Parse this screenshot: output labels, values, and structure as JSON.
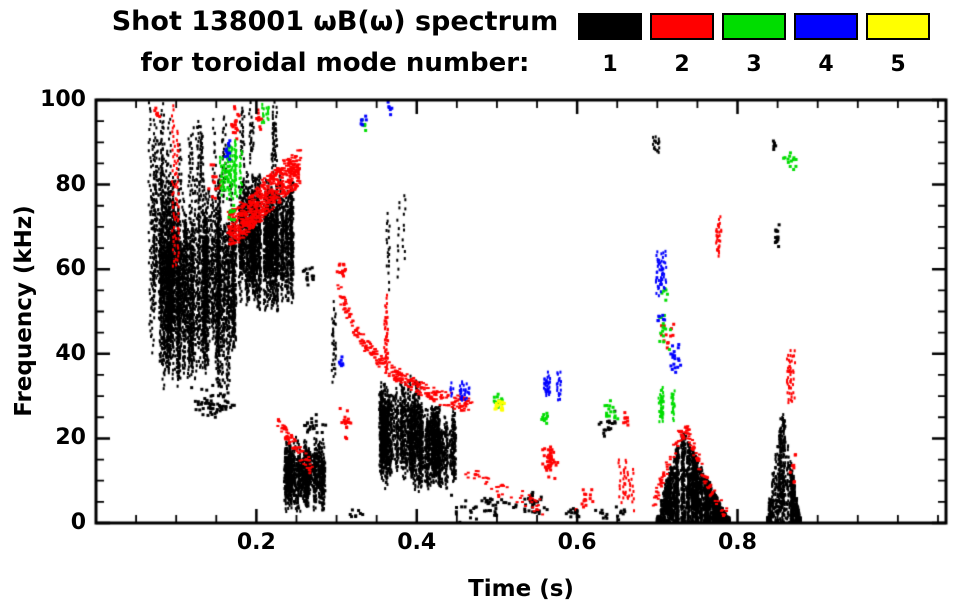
{
  "title": {
    "line1": "Shot 138001 ωB(ω) spectrum",
    "line2": "for toroidal mode number:"
  },
  "legend": {
    "items": [
      {
        "mode": "1",
        "color": "#000000"
      },
      {
        "mode": "2",
        "color": "#ff0000"
      },
      {
        "mode": "3",
        "color": "#00dd00"
      },
      {
        "mode": "4",
        "color": "#0000ff"
      },
      {
        "mode": "5",
        "color": "#ffff00"
      }
    ]
  },
  "axes": {
    "x": {
      "label": "Time (s)",
      "min": 0,
      "max": 1.06,
      "major_ticks": [
        0.2,
        0.4,
        0.6,
        0.8
      ],
      "tick_labels": [
        "0.2",
        "0.4",
        "0.6",
        "0.8"
      ],
      "minor_step": 0.05
    },
    "y": {
      "label": "Frequency (kHz)",
      "min": 0,
      "max": 100,
      "major_ticks": [
        0,
        20,
        40,
        60,
        80,
        100
      ],
      "tick_labels": [
        "0",
        "20",
        "40",
        "60",
        "80",
        "100"
      ],
      "minor_step": 5
    }
  },
  "chart_data": {
    "type": "scatter",
    "title": "Shot 138001 ωB(ω) spectrum for toroidal mode number 1-5",
    "xlabel": "Time (s)",
    "ylabel": "Frequency (kHz)",
    "xlim": [
      0,
      1.06
    ],
    "ylim": [
      0,
      100
    ],
    "grid": false,
    "legend_position": "top-right",
    "series": [
      {
        "name": "n=1",
        "color": "#000000",
        "clusters": [
          {
            "style": "streaks",
            "t": [
              0.065,
              0.1
            ],
            "f": [
              35,
              100
            ],
            "strands": 16,
            "per": 40
          },
          {
            "style": "streaks",
            "t": [
              0.08,
              0.175
            ],
            "f": [
              32,
              82
            ],
            "strands": 80,
            "per": 50
          },
          {
            "style": "streaks",
            "t": [
              0.1,
              0.165
            ],
            "f": [
              75,
              96
            ],
            "strands": 10,
            "per": 15
          },
          {
            "style": "streaks",
            "t": [
              0.175,
              0.245
            ],
            "f": [
              50,
              83
            ],
            "strands": 55,
            "per": 45
          },
          {
            "style": "streaks",
            "t": [
              0.18,
              0.225
            ],
            "f": [
              82,
              100
            ],
            "strands": 8,
            "per": 14
          },
          {
            "style": "blob",
            "t": [
              0.115,
              0.18
            ],
            "f": [
              23,
              33
            ],
            "n": 60
          },
          {
            "style": "streaks",
            "t": [
              0.235,
              0.285
            ],
            "f": [
              3,
              20
            ],
            "strands": 38,
            "per": 32
          },
          {
            "style": "blob",
            "t": [
              0.25,
              0.29
            ],
            "f": [
              20,
              26
            ],
            "n": 20
          },
          {
            "style": "blob",
            "t": [
              0.255,
              0.275
            ],
            "f": [
              55,
              62
            ],
            "n": 14
          },
          {
            "style": "streaks",
            "t": [
              0.29,
              0.305
            ],
            "f": [
              30,
              52
            ],
            "strands": 3,
            "per": 12
          },
          {
            "style": "streaks",
            "t": [
              0.355,
              0.385
            ],
            "f": [
              55,
              78
            ],
            "strands": 4,
            "per": 10
          },
          {
            "style": "streaks",
            "t": [
              0.35,
              0.405
            ],
            "f": [
              8,
              35
            ],
            "strands": 38,
            "per": 40
          },
          {
            "style": "streaks",
            "t": [
              0.405,
              0.45
            ],
            "f": [
              8,
              28
            ],
            "strands": 30,
            "per": 36
          },
          {
            "style": "blob",
            "t": [
              0.44,
              0.53
            ],
            "f": [
              0,
              7
            ],
            "n": 45
          },
          {
            "style": "blob",
            "t": [
              0.53,
              0.565
            ],
            "f": [
              1,
              9
            ],
            "n": 30
          },
          {
            "style": "blob",
            "t": [
              0.58,
              0.615
            ],
            "f": [
              0,
              5
            ],
            "n": 14
          },
          {
            "style": "blob",
            "t": [
              0.62,
              0.655
            ],
            "f": [
              20,
              27
            ],
            "n": 18
          },
          {
            "style": "blob",
            "t": [
              0.62,
              0.64
            ],
            "f": [
              0,
              4
            ],
            "n": 8
          },
          {
            "style": "blob",
            "t": [
              0.648,
              0.668
            ],
            "f": [
              0,
              5
            ],
            "n": 8
          },
          {
            "style": "streaks",
            "t": [
              0.695,
              0.705
            ],
            "f": [
              87,
              93
            ],
            "strands": 2,
            "per": 9
          },
          {
            "style": "wedge",
            "t": [
              0.7,
              0.732,
              0.79
            ],
            "fPeak": 22,
            "strands": 75,
            "per": 40
          },
          {
            "style": "wedge",
            "t": [
              0.838,
              0.856,
              0.878
            ],
            "fPeak": 27,
            "strands": 26,
            "per": 34
          },
          {
            "style": "blob",
            "t": [
              0.845,
              0.853
            ],
            "f": [
              64,
              72
            ],
            "n": 14
          },
          {
            "style": "blob",
            "t": [
              0.842,
              0.848
            ],
            "f": [
              87,
              91
            ],
            "n": 6
          },
          {
            "style": "blob",
            "t": [
              0.3,
              0.34
            ],
            "f": [
              0,
              4
            ],
            "n": 8
          }
        ]
      },
      {
        "name": "n=2",
        "color": "#ff0000",
        "clusters": [
          {
            "style": "streaks",
            "t": [
              0.096,
              0.104
            ],
            "f": [
              55,
              100
            ],
            "strands": 2,
            "per": 38
          },
          {
            "style": "blob",
            "t": [
              0.072,
              0.079
            ],
            "f": [
              95,
              100
            ],
            "n": 6
          },
          {
            "style": "curve",
            "pts": [
              [
                0.165,
                69
              ],
              [
                0.19,
                73
              ],
              [
                0.21,
                77
              ],
              [
                0.232,
                81
              ],
              [
                0.253,
                84
              ]
            ],
            "w": 4.5,
            "n": 650
          },
          {
            "style": "blob",
            "t": [
              0.168,
              0.178
            ],
            "f": [
              88,
              100
            ],
            "n": 18
          },
          {
            "style": "blob",
            "t": [
              0.198,
              0.21
            ],
            "f": [
              92,
              99
            ],
            "n": 10
          },
          {
            "style": "blob",
            "t": [
              0.138,
              0.158
            ],
            "f": [
              76,
              86
            ],
            "n": 14
          },
          {
            "style": "curve",
            "pts": [
              [
                0.225,
                24
              ],
              [
                0.245,
                19
              ],
              [
                0.268,
                13
              ]
            ],
            "w": 1.5,
            "n": 70
          },
          {
            "style": "blob",
            "t": [
              0.298,
              0.312
            ],
            "f": [
              56,
              63
            ],
            "n": 12
          },
          {
            "style": "curve",
            "pts": [
              [
                0.302,
                55
              ],
              [
                0.325,
                45
              ],
              [
                0.35,
                39
              ],
              [
                0.375,
                35
              ],
              [
                0.4,
                32
              ],
              [
                0.425,
                30
              ],
              [
                0.45,
                28.5
              ],
              [
                0.468,
                28
              ]
            ],
            "w": 1.8,
            "n": 300
          },
          {
            "style": "streaks",
            "t": [
              0.357,
              0.363
            ],
            "f": [
              36,
              56
            ],
            "strands": 2,
            "per": 22
          },
          {
            "style": "blob",
            "t": [
              0.303,
              0.318
            ],
            "f": [
              20,
              28
            ],
            "n": 16
          },
          {
            "style": "curve",
            "pts": [
              [
                0.46,
                12
              ],
              [
                0.5,
                8
              ],
              [
                0.53,
                6
              ],
              [
                0.558,
                3.5
              ]
            ],
            "w": 1.8,
            "n": 55
          },
          {
            "style": "blob",
            "t": [
              0.553,
              0.576
            ],
            "f": [
              10,
              20
            ],
            "n": 40
          },
          {
            "style": "blob",
            "t": [
              0.598,
              0.622
            ],
            "f": [
              2,
              9
            ],
            "n": 14
          },
          {
            "style": "streaks",
            "t": [
              0.648,
              0.672
            ],
            "f": [
              2,
              16
            ],
            "strands": 5,
            "per": 9
          },
          {
            "style": "blob",
            "t": [
              0.655,
              0.668
            ],
            "f": [
              22,
              27
            ],
            "n": 8
          },
          {
            "style": "curve",
            "pts": [
              [
                0.695,
                5
              ],
              [
                0.71,
                12
              ],
              [
                0.726,
                20
              ],
              [
                0.736,
                22
              ],
              [
                0.75,
                15
              ],
              [
                0.766,
                8
              ],
              [
                0.785,
                2
              ]
            ],
            "w": 1.5,
            "n": 140
          },
          {
            "style": "streaks",
            "t": [
              0.773,
              0.78
            ],
            "f": [
              62,
              75
            ],
            "strands": 2,
            "per": 16
          },
          {
            "style": "blob",
            "t": [
              0.7,
              0.722
            ],
            "f": [
              40,
              50
            ],
            "n": 12
          },
          {
            "style": "streaks",
            "t": [
              0.853,
              0.872
            ],
            "f": [
              28,
              42
            ],
            "strands": 5,
            "per": 9
          },
          {
            "style": "blob",
            "t": [
              0.862,
              0.875
            ],
            "f": [
              8,
              18
            ],
            "n": 8
          }
        ]
      },
      {
        "name": "n=3",
        "color": "#00dd00",
        "clusters": [
          {
            "style": "streaks",
            "t": [
              0.155,
              0.19
            ],
            "f": [
              77,
              90
            ],
            "strands": 10,
            "per": 16
          },
          {
            "style": "blob",
            "t": [
              0.162,
              0.174
            ],
            "f": [
              70,
              76
            ],
            "n": 8
          },
          {
            "style": "streaks",
            "t": [
              0.208,
              0.217
            ],
            "f": [
              93,
              100
            ],
            "strands": 2,
            "per": 9
          },
          {
            "style": "blob",
            "t": [
              0.33,
              0.337
            ],
            "f": [
              92,
              96
            ],
            "n": 5
          },
          {
            "style": "blob",
            "t": [
              0.495,
              0.509
            ],
            "f": [
              27,
              31
            ],
            "n": 16
          },
          {
            "style": "blob",
            "t": [
              0.553,
              0.566
            ],
            "f": [
              22,
              27
            ],
            "n": 10
          },
          {
            "style": "blob",
            "t": [
              0.625,
              0.652
            ],
            "f": [
              23,
              30
            ],
            "n": 16
          },
          {
            "style": "streaks",
            "t": [
              0.695,
              0.72
            ],
            "f": [
              24,
              33
            ],
            "strands": 6,
            "per": 11
          },
          {
            "style": "blob",
            "t": [
              0.699,
              0.716
            ],
            "f": [
              40,
              50
            ],
            "n": 14
          },
          {
            "style": "blob",
            "t": [
              0.704,
              0.712
            ],
            "f": [
              52,
              57
            ],
            "n": 6
          },
          {
            "style": "blob",
            "t": [
              0.855,
              0.876
            ],
            "f": [
              83,
              90
            ],
            "n": 13
          }
        ]
      },
      {
        "name": "n=4",
        "color": "#0000ff",
        "clusters": [
          {
            "style": "blob",
            "t": [
              0.157,
              0.169
            ],
            "f": [
              85,
              92
            ],
            "n": 11
          },
          {
            "style": "blob",
            "t": [
              0.302,
              0.31
            ],
            "f": [
              36,
              40
            ],
            "n": 7
          },
          {
            "style": "blob",
            "t": [
              0.328,
              0.337
            ],
            "f": [
              93,
              98
            ],
            "n": 7
          },
          {
            "style": "blob",
            "t": [
              0.362,
              0.371
            ],
            "f": [
              96,
              100
            ],
            "n": 6
          },
          {
            "style": "streaks",
            "t": [
              0.44,
              0.466
            ],
            "f": [
              29,
              34
            ],
            "strands": 5,
            "per": 7
          },
          {
            "style": "streaks",
            "t": [
              0.553,
              0.58
            ],
            "f": [
              29,
              36
            ],
            "strands": 6,
            "per": 9
          },
          {
            "style": "streaks",
            "t": [
              0.695,
              0.716
            ],
            "f": [
              54,
              66
            ],
            "strands": 5,
            "per": 11
          },
          {
            "style": "blob",
            "t": [
              0.714,
              0.731
            ],
            "f": [
              35,
              43
            ],
            "n": 18
          },
          {
            "style": "blob",
            "t": [
              0.7,
              0.711
            ],
            "f": [
              46,
              50
            ],
            "n": 7
          }
        ]
      },
      {
        "name": "n=5",
        "color": "#ffff00",
        "clusters": [
          {
            "style": "blob",
            "t": [
              0.496,
              0.511
            ],
            "f": [
              26,
              30
            ],
            "n": 18
          }
        ]
      }
    ]
  }
}
